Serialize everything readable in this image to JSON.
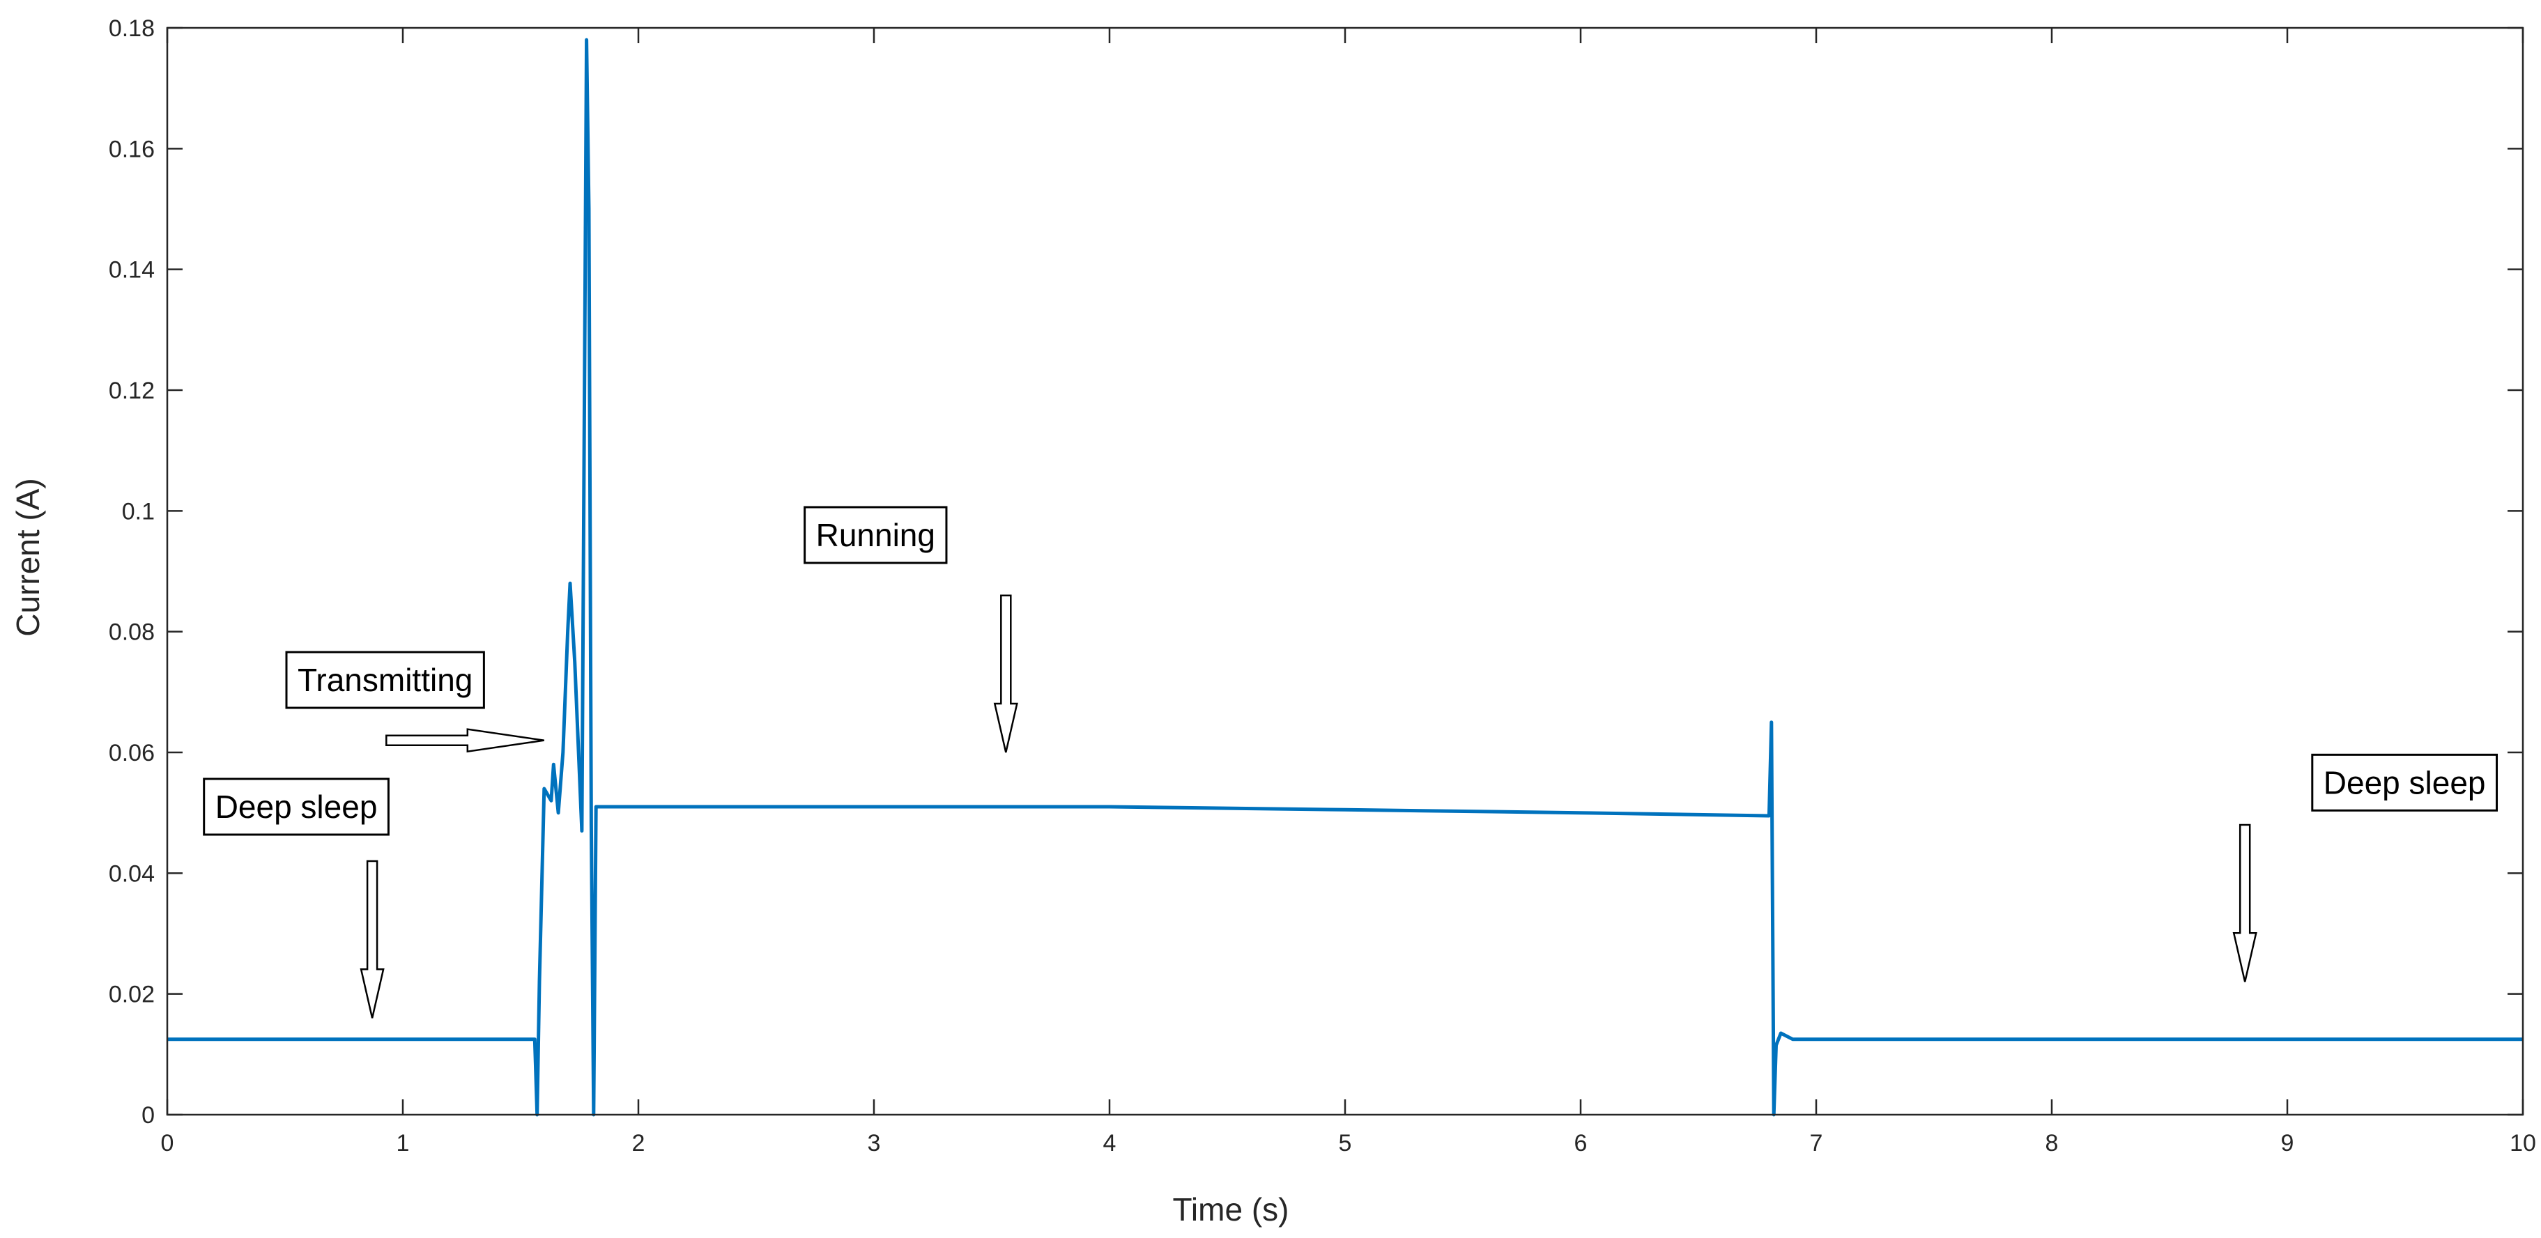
{
  "chart_data": {
    "type": "line",
    "xlabel": "Time (s)",
    "ylabel": "Current (A)",
    "xlim": [
      0,
      10
    ],
    "ylim": [
      0,
      0.18
    ],
    "xticks": [
      0,
      1,
      2,
      3,
      4,
      5,
      6,
      7,
      8,
      9,
      10
    ],
    "yticks": [
      0,
      0.02,
      0.04,
      0.06,
      0.08,
      0.1,
      0.12,
      0.14,
      0.16,
      0.18
    ],
    "xtick_labels": [
      "0",
      "1",
      "2",
      "3",
      "4",
      "5",
      "6",
      "7",
      "8",
      "9",
      "10"
    ],
    "ytick_labels": [
      "0",
      "0.02",
      "0.04",
      "0.06",
      "0.08",
      "0.1",
      "0.12",
      "0.14",
      "0.16",
      "0.18"
    ],
    "grid": false,
    "line_color": "#0072BD",
    "series": [
      {
        "x": [
          0,
          1.56,
          1.57,
          1.58,
          1.6,
          1.63,
          1.64,
          1.66,
          1.68,
          1.7,
          1.71,
          1.73,
          1.76,
          1.78,
          1.79,
          1.8,
          1.81,
          1.82,
          2.0,
          3.0,
          4.0,
          5.0,
          6.0,
          6.8,
          6.81,
          6.82,
          6.83,
          6.85,
          6.9,
          7.0,
          8.0,
          9.0,
          10.0
        ],
        "y": [
          0.0125,
          0.0125,
          0.0,
          0.022,
          0.054,
          0.052,
          0.058,
          0.05,
          0.06,
          0.08,
          0.088,
          0.075,
          0.047,
          0.178,
          0.15,
          0.048,
          0.0,
          0.051,
          0.051,
          0.051,
          0.051,
          0.0505,
          0.05,
          0.0495,
          0.065,
          0.0,
          0.0115,
          0.0135,
          0.0125,
          0.0125,
          0.0125,
          0.0125,
          0.0125
        ]
      }
    ],
    "annotations": [
      {
        "text": "Deep sleep",
        "box_x": 0.15,
        "box_y": 0.051,
        "arrow": "down",
        "arrow_x": 0.87,
        "arrow_from": 0.042,
        "arrow_to": 0.016
      },
      {
        "text": "Transmitting",
        "box_x": 0.5,
        "box_y": 0.072,
        "arrow": "right",
        "arrow_y": 0.062,
        "arrow_from": 0.93,
        "arrow_to": 1.6
      },
      {
        "text": "Running",
        "box_x": 2.7,
        "box_y": 0.096,
        "arrow": "down",
        "arrow_x": 3.56,
        "arrow_from": 0.086,
        "arrow_to": 0.06
      },
      {
        "text": "Deep sleep",
        "box_x": 9.1,
        "box_y": 0.055,
        "arrow": "down",
        "arrow_x": 8.82,
        "arrow_from": 0.048,
        "arrow_to": 0.022
      }
    ]
  }
}
